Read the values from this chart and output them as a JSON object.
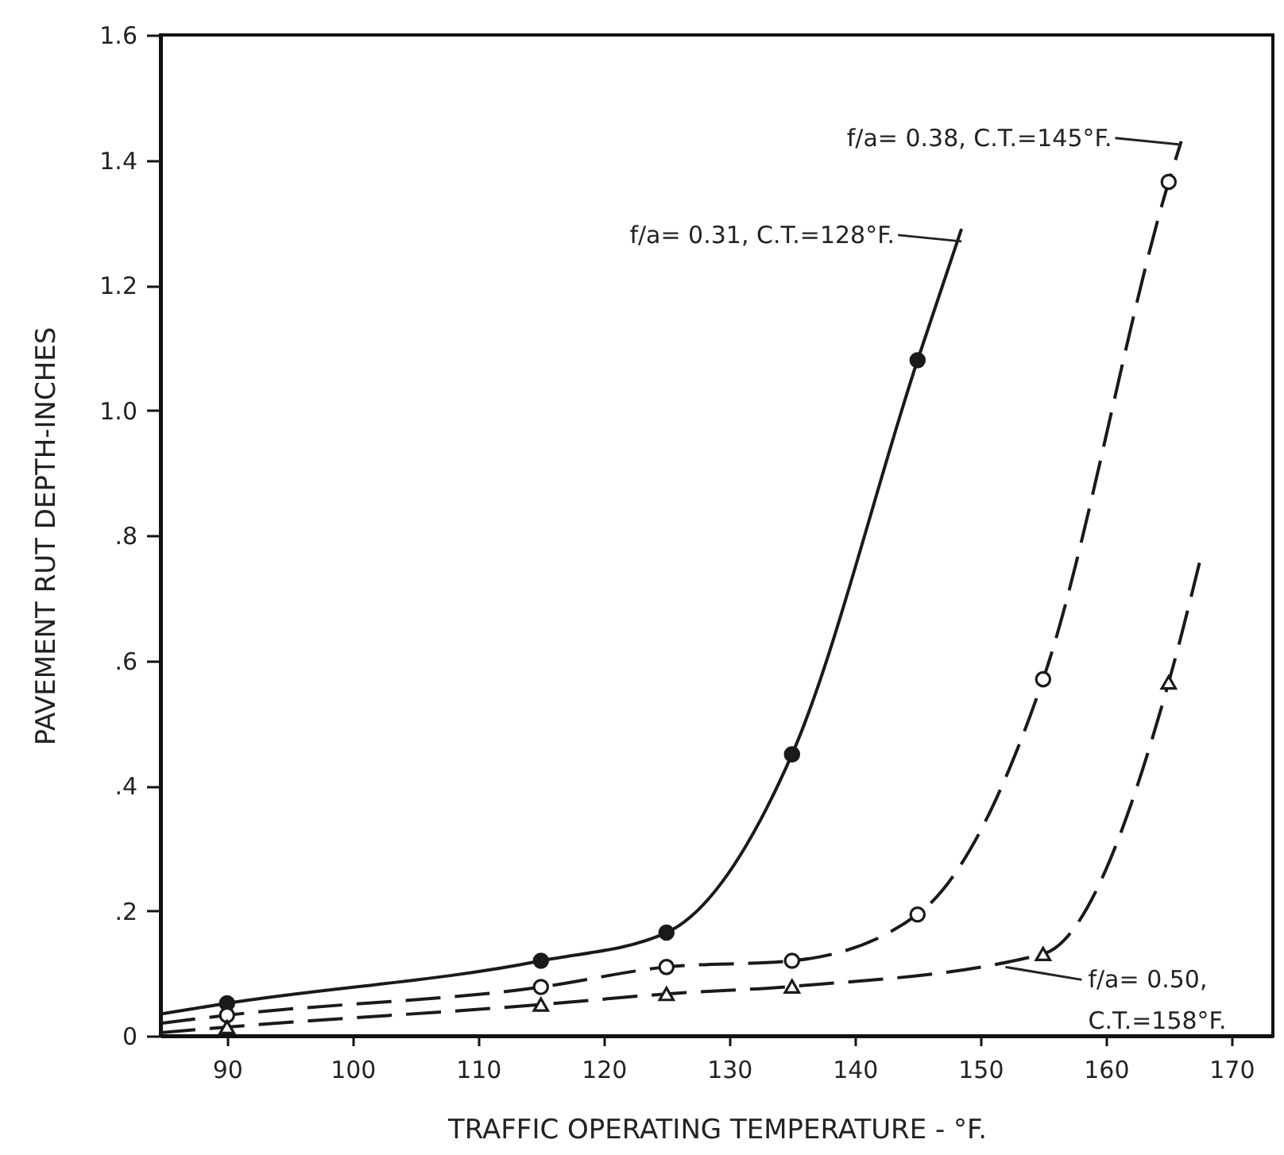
{
  "chart_data": {
    "type": "line",
    "xlabel": "TRAFFIC OPERATING TEMPERATURE - °F.",
    "ylabel": "PAVEMENT RUT DEPTH-INCHES",
    "xlim": [
      84.7,
      173.3
    ],
    "xticks": [
      90,
      100,
      110,
      120,
      130,
      140,
      150,
      160,
      170
    ],
    "ylim": [
      0,
      1.6
    ],
    "yticks": [
      {
        "value": 0,
        "label": "0"
      },
      {
        "value": 0.2,
        "label": ".2"
      },
      {
        "value": 0.4,
        "label": ".4"
      },
      {
        "value": 0.6,
        "label": ".6"
      },
      {
        "value": 0.8,
        "label": ".8"
      },
      {
        "value": 1.0,
        "label": "1.0"
      },
      {
        "value": 1.2,
        "label": "1.2"
      },
      {
        "value": 1.4,
        "label": "1.4"
      },
      {
        "value": 1.6,
        "label": "1.6"
      }
    ],
    "grid": false,
    "series": [
      {
        "line_style": "solid",
        "marker": "none",
        "color": "#1a1a1a",
        "x": [
          84.7,
          90,
          115,
          125,
          135,
          145,
          148.5
        ],
        "values": [
          0.035,
          0.052,
          0.12,
          0.165,
          0.45,
          1.08,
          1.29
        ]
      },
      {
        "line_style": "dashed",
        "marker": "none",
        "color": "#1a1a1a",
        "x": [
          84.7,
          90,
          115,
          125,
          135,
          145,
          155,
          165,
          166
        ],
        "values": [
          0.02,
          0.033,
          0.078,
          0.11,
          0.12,
          0.194,
          0.57,
          1.365,
          1.43
        ]
      },
      {
        "line_style": "dashed",
        "marker": "none",
        "color": "#1a1a1a",
        "x": [
          84.7,
          90,
          115,
          125,
          135,
          155,
          165,
          167.5
        ],
        "values": [
          0.005,
          0.014,
          0.05,
          0.067,
          0.079,
          0.131,
          0.565,
          0.76
        ]
      },
      {
        "type": "scatter",
        "marker": "circle",
        "color": "#1a1a1a",
        "x": [
          90,
          115,
          125,
          135,
          145
        ],
        "values": [
          0.052,
          0.12,
          0.165,
          0.45,
          1.08
        ]
      },
      {
        "type": "scatter",
        "marker": "circle",
        "color": "#ffffff",
        "x": [
          90,
          115,
          125,
          135,
          145,
          155,
          165
        ],
        "values": [
          0.033,
          0.078,
          0.11,
          0.12,
          0.194,
          0.57,
          1.365
        ]
      },
      {
        "type": "scatter",
        "marker": "triangle",
        "color": "#ffffff",
        "x": [
          90,
          115,
          125,
          135,
          155,
          165
        ],
        "values": [
          0.014,
          0.05,
          0.067,
          0.079,
          0.131,
          0.565
        ]
      }
    ],
    "annotations": [
      {
        "text": "f/a= 0.31,  C.T.=128°F.",
        "x": 148.5,
        "y": 1.27
      },
      {
        "text": "f/a= 0.38,  C.T.=145°F.",
        "x": 165.8,
        "y": 1.425
      },
      {
        "text": "f/a= 0.50,\nC.T.=158°F.",
        "x": 152,
        "y": 0.11
      }
    ]
  }
}
